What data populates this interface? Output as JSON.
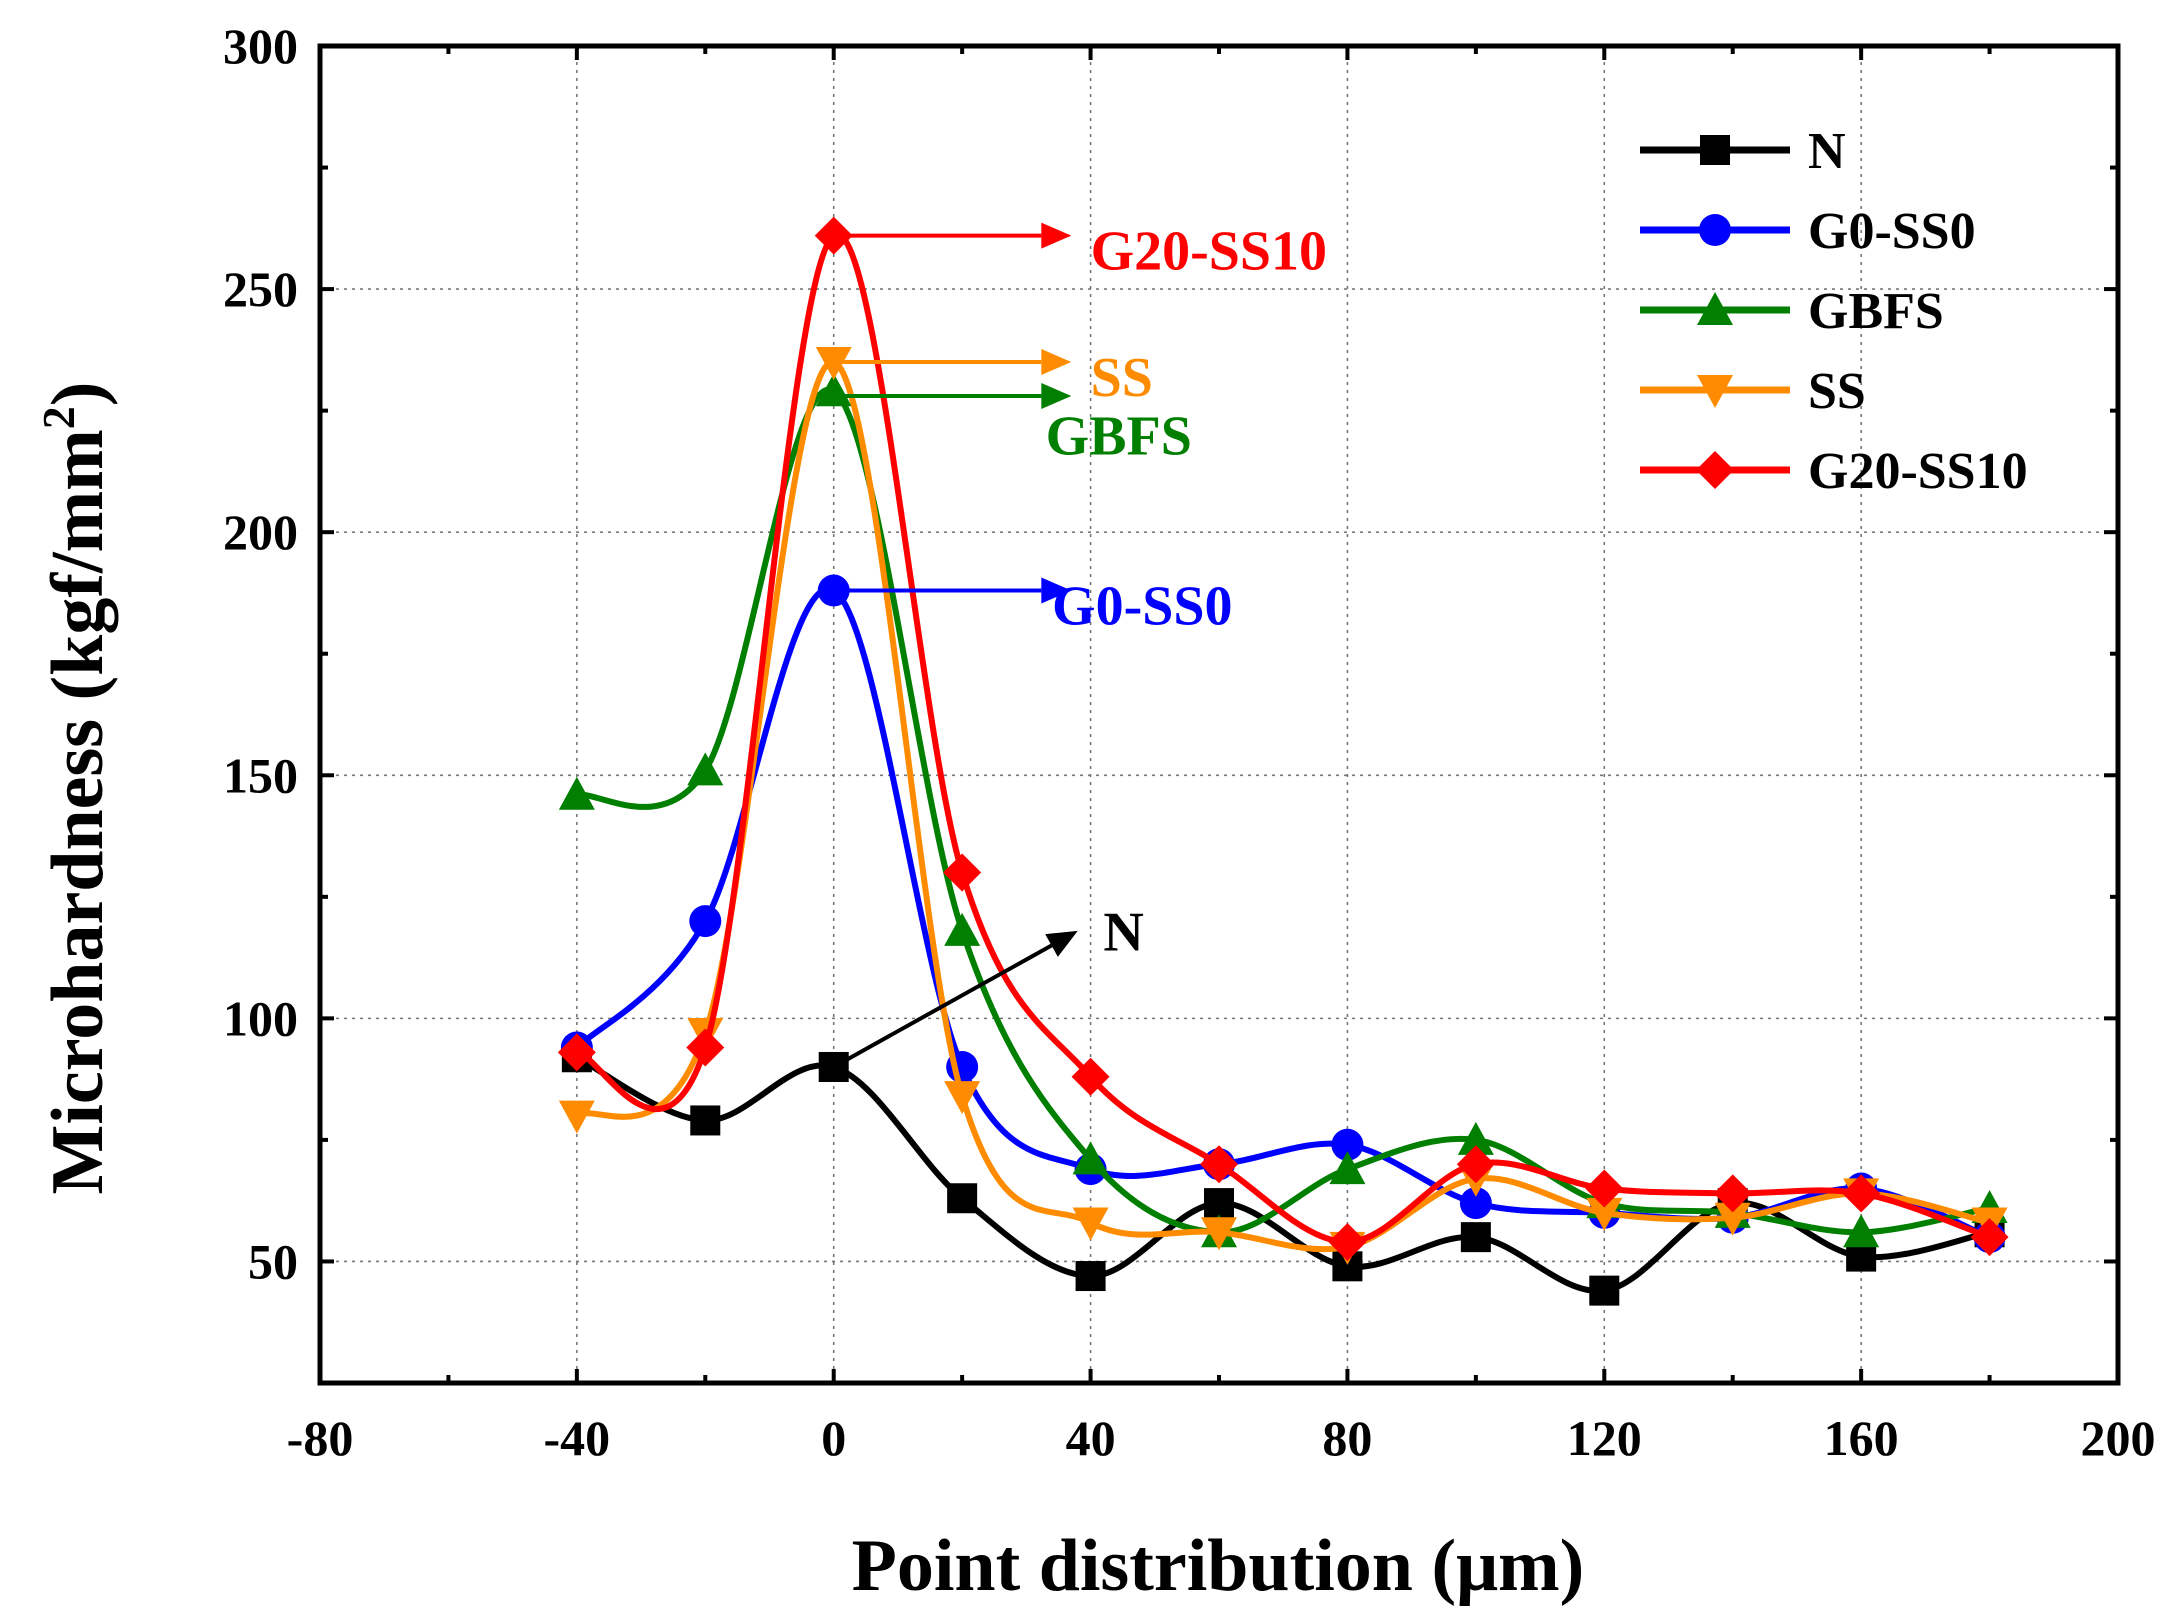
{
  "chart_data": {
    "type": "line",
    "xlabel": "Point distribution (μm)",
    "ylabel": "Microhardness (kgf/mm²)",
    "ylabel_base": "Microhardness (kgf/mm",
    "ylabel_sup": "2",
    "ylabel_close": ")",
    "xlim": [
      -80,
      200
    ],
    "ylim": [
      25,
      300
    ],
    "xticks": [
      -80,
      -40,
      0,
      40,
      80,
      120,
      160,
      200
    ],
    "yticks": [
      50,
      100,
      150,
      200,
      250,
      300
    ],
    "xtick_labels": [
      "-80",
      "-40",
      "0",
      "40",
      "80",
      "120",
      "160",
      "200"
    ],
    "ytick_labels": [
      "50",
      "100",
      "150",
      "200",
      "250",
      "300"
    ],
    "grid": true,
    "legend_position": "top-right",
    "x": [
      -40,
      -20,
      0,
      20,
      40,
      60,
      80,
      100,
      120,
      140,
      160,
      180
    ],
    "series": [
      {
        "name": "N",
        "color": "#000000",
        "marker": "square",
        "values": [
          92,
          79,
          90,
          63,
          47,
          62,
          49,
          55,
          44,
          62,
          51,
          56
        ]
      },
      {
        "name": "G0-SS0",
        "color": "#0000ff",
        "marker": "circle",
        "values": [
          94,
          120,
          188,
          90,
          69,
          70,
          74,
          62,
          60,
          59,
          65,
          55
        ]
      },
      {
        "name": "GBFS",
        "color": "#007f00",
        "marker": "triangle-up",
        "values": [
          146,
          151,
          229,
          118,
          71,
          56,
          69,
          75,
          62,
          60,
          56,
          61
        ]
      },
      {
        "name": "SS",
        "color": "#ff8c00",
        "marker": "triangle-down",
        "values": [
          80,
          97,
          235,
          84,
          58,
          56,
          53,
          67,
          60,
          59,
          64,
          58
        ]
      },
      {
        "name": "G20-SS10",
        "color": "#ff0000",
        "marker": "diamond",
        "values": [
          93,
          94,
          261,
          130,
          88,
          70,
          54,
          70,
          65,
          64,
          64,
          55
        ]
      }
    ],
    "annotations": [
      {
        "text": "G20-SS10",
        "color": "#ff0000",
        "from": [
          0,
          261
        ],
        "to": [
          37,
          261
        ],
        "label_at": [
          40,
          254
        ]
      },
      {
        "text": "SS",
        "color": "#ff8c00",
        "from": [
          0,
          235
        ],
        "to": [
          37,
          235
        ],
        "label_at": [
          40,
          228
        ]
      },
      {
        "text": "GBFS",
        "color": "#007f00",
        "from": [
          0,
          228
        ],
        "to": [
          37,
          228
        ],
        "label_at": [
          33,
          216
        ]
      },
      {
        "text": "G0-SS0",
        "color": "#0000ff",
        "from": [
          0,
          188
        ],
        "to": [
          37,
          188
        ],
        "label_at": [
          34,
          181
        ]
      },
      {
        "text": "N",
        "color": "#000000",
        "from": [
          0,
          90
        ],
        "to": [
          38,
          118
        ],
        "label_at": [
          42,
          114
        ]
      }
    ]
  }
}
